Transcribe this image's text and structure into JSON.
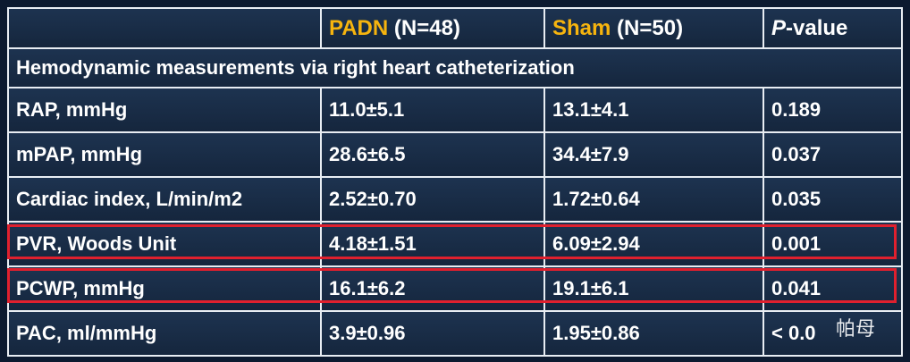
{
  "header": {
    "columns": [
      {
        "group": "PADN",
        "n": "(N=48)"
      },
      {
        "group": "Sham",
        "n": "(N=50)"
      },
      {
        "italic": "P",
        "rest": "-value"
      }
    ]
  },
  "section": "Hemodynamic measurements via right heart catheterization",
  "rows": [
    [
      "RAP, mmHg",
      "11.0±5.1",
      "13.1±4.1",
      "0.189"
    ],
    [
      "mPAP, mmHg",
      "28.6±6.5",
      "34.4±7.9",
      "0.037"
    ],
    [
      "Cardiac index, L/min/m2",
      "2.52±0.70",
      "1.72±0.64",
      "0.035"
    ],
    [
      "PVR, Woods Unit",
      "4.18±1.51",
      "6.09±2.94",
      "0.001"
    ],
    [
      "PCWP, mmHg",
      "16.1±6.2",
      "19.1±6.1",
      "0.041"
    ],
    [
      "PAC, ml/mmHg",
      "3.9±0.96",
      "1.95±0.86",
      "< 0.0"
    ]
  ],
  "watermark": "帕母"
}
